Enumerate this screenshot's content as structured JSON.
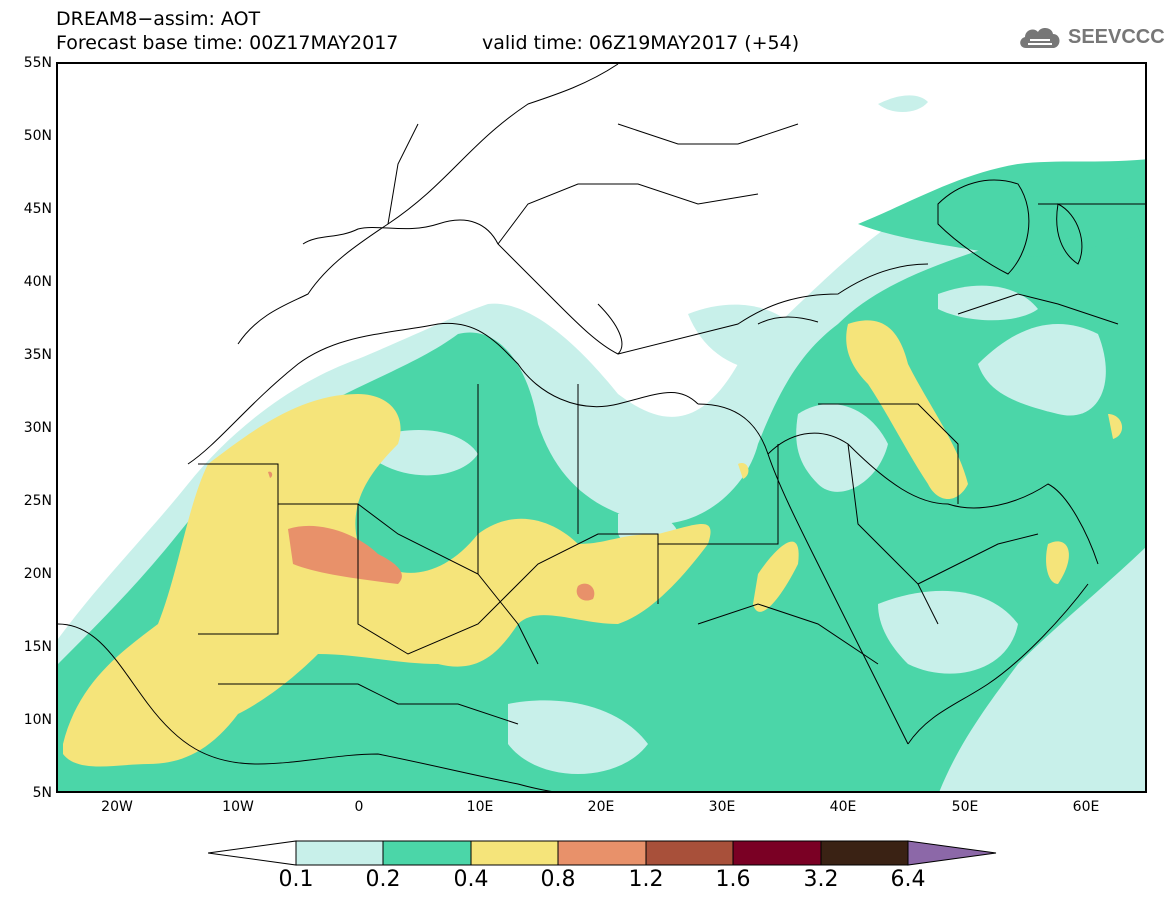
{
  "header": {
    "line1": "DREAM8−assim: AOT",
    "line2": "Forecast base time: 00Z17MAY2017",
    "valid": "valid time: 06Z19MAY2017 (+54)",
    "logo_text": "SEEVCCC"
  },
  "axes": {
    "lat_ticks": [
      "55N",
      "50N",
      "45N",
      "40N",
      "35N",
      "30N",
      "25N",
      "20N",
      "15N",
      "10N",
      "5N"
    ],
    "lon_ticks": [
      "20W",
      "10W",
      "0",
      "10E",
      "20E",
      "30E",
      "40E",
      "50E",
      "60E"
    ]
  },
  "legend": {
    "levels": [
      "0.1",
      "0.2",
      "0.4",
      "0.8",
      "1.2",
      "1.6",
      "3.2",
      "6.4"
    ],
    "colors": [
      "#c8f0ea",
      "#4bd6a8",
      "#f5e47a",
      "#e8916a",
      "#a8503a",
      "#7a0024",
      "#3a2214",
      "#8c68a8"
    ]
  }
}
